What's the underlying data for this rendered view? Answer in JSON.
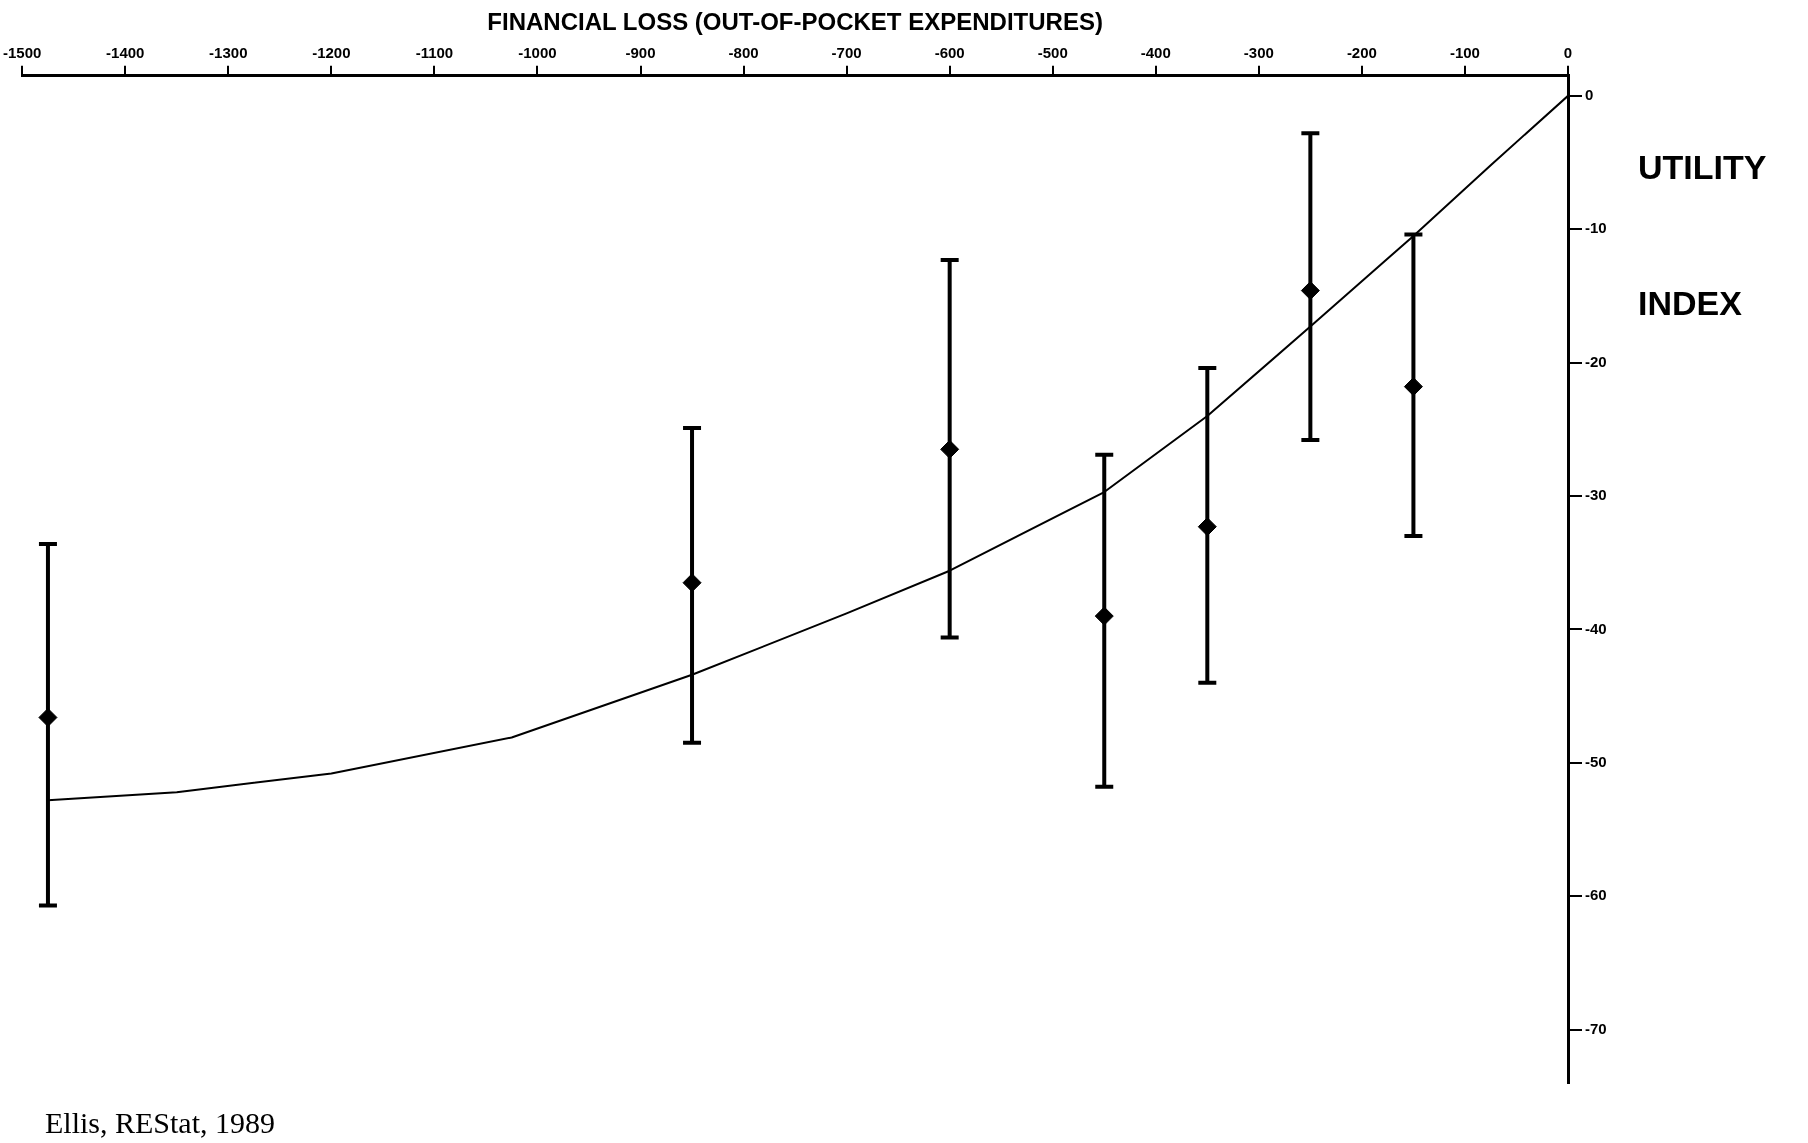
{
  "chart_data": {
    "type": "scatter",
    "xlabel": "FINANCIAL LOSS (OUT-OF-POCKET EXPENDITURES)",
    "ylabel": "UTILITY INDEX",
    "xlim": [
      -1500,
      0
    ],
    "xticks": [
      -1500,
      -1400,
      -1300,
      -1200,
      -1100,
      -1000,
      -900,
      -800,
      -700,
      -600,
      -500,
      -400,
      -300,
      -200,
      -100,
      0
    ],
    "ylim": [
      -74,
      1.5
    ],
    "yticks": [
      0,
      -10,
      -20,
      -30,
      -40,
      -50,
      -60,
      -70
    ],
    "grid": false,
    "legend": false,
    "marker": "diamond",
    "series": [
      {
        "color": "#000000",
        "x": [
          -1475,
          -850,
          -600,
          -450,
          -350,
          -250,
          -150
        ],
        "values": [
          -46.6,
          -36.5,
          -26.5,
          -39,
          -32.3,
          -14.6,
          -21.8
        ],
        "errors": [
          [
            -60.7,
            -33.6
          ],
          [
            -48.5,
            -24.9
          ],
          [
            -40.6,
            -12.3
          ],
          [
            -51.8,
            -26.9
          ],
          [
            -44,
            -20.4
          ],
          [
            -25.8,
            -2.8
          ],
          [
            -33,
            -10.4
          ]
        ]
      },
      {
        "type": "line",
        "color": "#000000",
        "marker": "none",
        "x": [
          -1475,
          -1350,
          -1200,
          -1025,
          -850,
          -700,
          -600,
          -450,
          -350,
          -250,
          -150,
          -75,
          0
        ],
        "values": [
          -52.8,
          -52.2,
          -50.8,
          -48.1,
          -43.4,
          -38.8,
          -35.6,
          -29.7,
          -24,
          -17.3,
          -10.5,
          -5.2,
          0
        ]
      }
    ],
    "annotations": [
      "Ellis, REStat, 1989"
    ]
  }
}
